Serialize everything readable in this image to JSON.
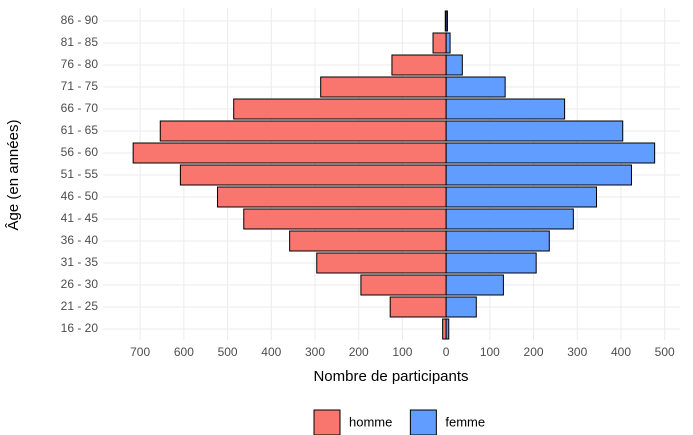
{
  "chart_data": {
    "type": "pyramid",
    "xlabel": "Nombre de participants",
    "ylabel": "Âge (en années)",
    "categories": [
      "16 - 20",
      "21 - 25",
      "26 - 30",
      "31 - 35",
      "36 - 40",
      "41 - 45",
      "46 - 50",
      "51 - 55",
      "56 - 60",
      "61 - 65",
      "66 - 70",
      "71 - 75",
      "76 - 80",
      "81 - 85",
      "86 - 90"
    ],
    "series": [
      {
        "name": "homme",
        "color": "#f8766d",
        "values": [
          -8,
          -128,
          -195,
          -296,
          -358,
          -463,
          -523,
          -608,
          -716,
          -654,
          -486,
          -287,
          -124,
          -30,
          -2
        ]
      },
      {
        "name": "femme",
        "color": "#619cff",
        "values": [
          6,
          69,
          131,
          206,
          236,
          291,
          344,
          424,
          477,
          404,
          271,
          135,
          37,
          9,
          3
        ]
      }
    ],
    "xlim": [
      -785,
      535
    ],
    "xticks": [
      {
        "value": -700,
        "label": "700"
      },
      {
        "value": -600,
        "label": "600"
      },
      {
        "value": -500,
        "label": "500"
      },
      {
        "value": -400,
        "label": "400"
      },
      {
        "value": -300,
        "label": "300"
      },
      {
        "value": -200,
        "label": "200"
      },
      {
        "value": -100,
        "label": "100"
      },
      0,
      100,
      200,
      300,
      400,
      500
    ],
    "grid": true,
    "legend": "bottom"
  }
}
